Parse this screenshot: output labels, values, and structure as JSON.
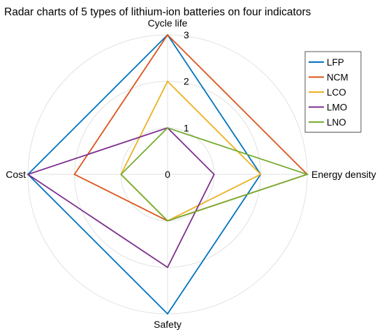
{
  "chart_data": {
    "type": "radar",
    "title": "Radar charts of 5 types of lithium-ion batteries on four indicators",
    "axes": [
      "Cycle life",
      "Energy density",
      "Safety",
      "Cost"
    ],
    "rlim": [
      0,
      3
    ],
    "ticks": [
      "0",
      "1",
      "2",
      "3"
    ],
    "grid": true,
    "legend": "right",
    "series": [
      {
        "name": "LFP",
        "color": "#0072BD",
        "values": [
          3,
          2,
          3,
          3
        ]
      },
      {
        "name": "NCM",
        "color": "#D95319",
        "values": [
          3,
          3,
          1,
          2
        ]
      },
      {
        "name": "LCO",
        "color": "#EDB120",
        "values": [
          2,
          2,
          1,
          1
        ]
      },
      {
        "name": "LMO",
        "color": "#7E2F8E",
        "values": [
          1,
          1,
          2,
          3
        ]
      },
      {
        "name": "LNO",
        "color": "#77AC30",
        "values": [
          1,
          3,
          1,
          1
        ]
      }
    ]
  }
}
